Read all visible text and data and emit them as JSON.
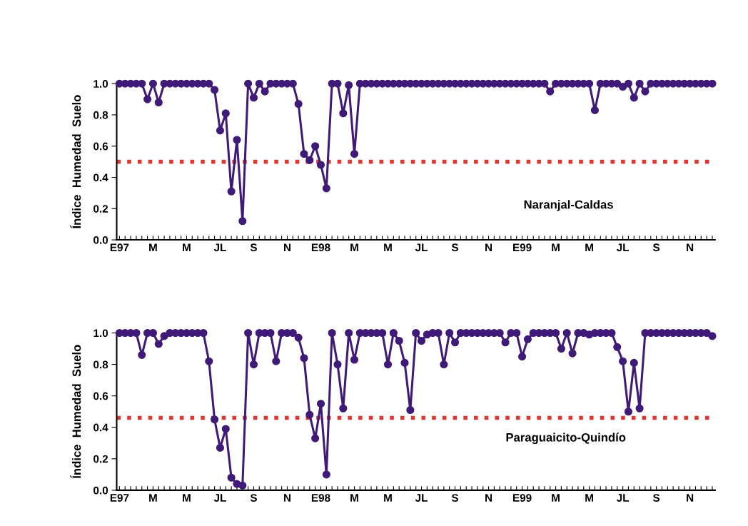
{
  "chart_data": [
    {
      "type": "line",
      "ylabel": "Índice  Humedad  Suelo",
      "annotations": [
        "Naranjal-Caldas"
      ],
      "categories": [
        "E97",
        null,
        null,
        null,
        null,
        null,
        "M",
        null,
        null,
        null,
        null,
        null,
        "M",
        null,
        null,
        null,
        null,
        null,
        "JL",
        null,
        null,
        null,
        null,
        null,
        "S",
        null,
        null,
        null,
        null,
        null,
        "N",
        null,
        null,
        null,
        null,
        null,
        "E98",
        null,
        null,
        null,
        null,
        null,
        "M",
        null,
        null,
        null,
        null,
        null,
        "M",
        null,
        null,
        null,
        null,
        null,
        "JL",
        null,
        null,
        null,
        null,
        null,
        "S",
        null,
        null,
        null,
        null,
        null,
        "N",
        null,
        null,
        null,
        null,
        null,
        "E99",
        null,
        null,
        null,
        null,
        null,
        "M",
        null,
        null,
        null,
        null,
        null,
        "M",
        null,
        null,
        null,
        null,
        null,
        "JL",
        null,
        null,
        null,
        null,
        null,
        "S",
        null,
        null,
        null,
        null,
        null,
        "N",
        null,
        null,
        null,
        null
      ],
      "series": [
        {
          "color": "#3f1a78",
          "values": [
            1,
            1,
            1,
            1,
            1,
            0.9,
            1,
            0.88,
            1,
            1,
            1,
            1,
            1,
            1,
            1,
            1,
            1,
            0.96,
            0.7,
            0.81,
            0.31,
            0.64,
            0.12,
            1,
            0.91,
            1,
            0.95,
            1,
            1,
            1,
            1,
            1,
            0.87,
            0.55,
            0.51,
            0.6,
            0.48,
            0.33,
            1,
            1,
            0.81,
            0.99,
            0.55,
            1,
            1,
            1,
            1,
            1,
            1,
            1,
            1,
            1,
            1,
            1,
            1,
            1,
            1,
            1,
            1,
            1,
            1,
            1,
            1,
            1,
            1,
            1,
            1,
            1,
            1,
            1,
            1,
            1,
            1,
            1,
            1,
            1,
            1,
            0.95,
            1,
            1,
            1,
            1,
            1,
            1,
            1,
            0.83,
            1,
            1,
            1,
            1,
            0.98,
            1,
            0.91,
            1,
            0.95,
            1,
            1,
            1,
            1,
            1,
            1,
            1,
            1,
            1,
            1,
            1,
            1
          ]
        }
      ],
      "ylim": [
        0,
        1.0
      ],
      "yticks": [
        {
          "value": 0,
          "label": "0.0"
        },
        {
          "value": 0.2,
          "label": "0.2"
        },
        {
          "value": 0.4,
          "label": "0.4"
        },
        {
          "value": 0.6,
          "label": "0.6"
        },
        {
          "value": 0.8,
          "label": "0.8"
        },
        {
          "value": 1.0,
          "label": "1.0"
        }
      ],
      "ref_lines": [
        {
          "axis": "y",
          "value": 0.5,
          "color": "#e0382e",
          "line_style": "dotted"
        }
      ],
      "marker": "circle",
      "line_style": "solid",
      "grid": false
    },
    {
      "type": "line",
      "ylabel": "Índice  Humedad  Suelo",
      "annotations": [
        "Paraguaicito-Quindío"
      ],
      "categories": [
        "E97",
        null,
        null,
        null,
        null,
        null,
        "M",
        null,
        null,
        null,
        null,
        null,
        "M",
        null,
        null,
        null,
        null,
        null,
        "JL",
        null,
        null,
        null,
        null,
        null,
        "S",
        null,
        null,
        null,
        null,
        null,
        "N",
        null,
        null,
        null,
        null,
        null,
        "E98",
        null,
        null,
        null,
        null,
        null,
        "M",
        null,
        null,
        null,
        null,
        null,
        "M",
        null,
        null,
        null,
        null,
        null,
        "JL",
        null,
        null,
        null,
        null,
        null,
        "S",
        null,
        null,
        null,
        null,
        null,
        "N",
        null,
        null,
        null,
        null,
        null,
        "E99",
        null,
        null,
        null,
        null,
        null,
        "M",
        null,
        null,
        null,
        null,
        null,
        "M",
        null,
        null,
        null,
        null,
        null,
        "JL",
        null,
        null,
        null,
        null,
        null,
        "S",
        null,
        null,
        null,
        null,
        null,
        "N",
        null,
        null,
        null,
        null
      ],
      "series": [
        {
          "color": "#3f1a78",
          "values": [
            1,
            1,
            1,
            1,
            0.86,
            1,
            1,
            0.93,
            0.98,
            1,
            1,
            1,
            1,
            1,
            1,
            1,
            0.82,
            0.45,
            0.27,
            0.39,
            0.08,
            0.04,
            0.03,
            1,
            0.8,
            1,
            1,
            1,
            0.82,
            1,
            1,
            1,
            0.97,
            0.84,
            0.48,
            0.33,
            0.55,
            0.1,
            1,
            0.8,
            0.52,
            1,
            0.83,
            1,
            1,
            1,
            1,
            1,
            0.8,
            1,
            0.95,
            0.81,
            0.51,
            1,
            0.95,
            0.99,
            1,
            1,
            0.8,
            1,
            0.94,
            1,
            1,
            1,
            1,
            1,
            1,
            1,
            1,
            0.94,
            1,
            1,
            0.85,
            0.96,
            1,
            1,
            1,
            1,
            1,
            0.9,
            1,
            0.87,
            1,
            1,
            0.99,
            1,
            1,
            1,
            1,
            0.91,
            0.82,
            0.5,
            0.81,
            0.52,
            1,
            1,
            1,
            1,
            1,
            1,
            1,
            1,
            1,
            1,
            1,
            1,
            0.98
          ]
        }
      ],
      "ylim": [
        0,
        1.0
      ],
      "yticks": [
        {
          "value": 0,
          "label": "0.0"
        },
        {
          "value": 0.2,
          "label": "0.2"
        },
        {
          "value": 0.4,
          "label": "0.4"
        },
        {
          "value": 0.6,
          "label": "0.6"
        },
        {
          "value": 0.8,
          "label": "0.8"
        },
        {
          "value": 1.0,
          "label": "1.0"
        }
      ],
      "ref_lines": [
        {
          "axis": "y",
          "value": 0.46,
          "color": "#e0382e",
          "line_style": "dotted"
        }
      ],
      "marker": "circle",
      "line_style": "solid",
      "grid": false
    }
  ]
}
